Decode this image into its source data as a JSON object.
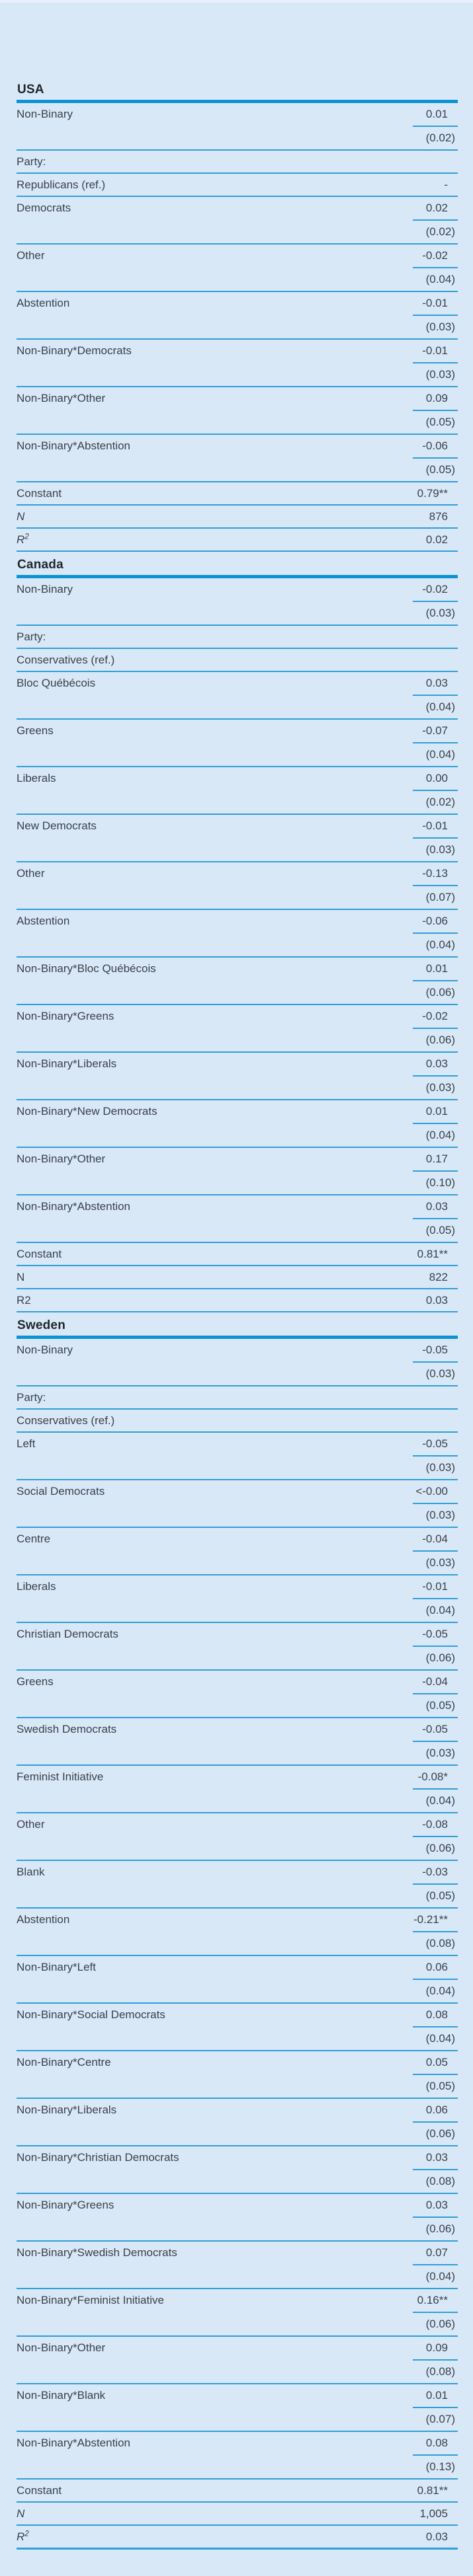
{
  "style": {
    "background": "#d9e8f7",
    "rule_thin": "#2f9ed9",
    "rule_thick": "#0d92d3",
    "text": "#3a414a",
    "header_text": "#21262d"
  },
  "table": {
    "sections": [
      {
        "country": "USA",
        "rows": [
          {
            "label": "Non-Binary",
            "value": "0.01",
            "se": "(0.02)"
          },
          {
            "label": "Party:",
            "value": ""
          },
          {
            "label": "Republicans (ref.)",
            "value": "-"
          },
          {
            "label": "Democrats",
            "value": "0.02",
            "se": "(0.02)"
          },
          {
            "label": "Other",
            "value": "-0.02",
            "se": "(0.04)"
          },
          {
            "label": "Abstention",
            "value": "-0.01",
            "se": "(0.03)"
          },
          {
            "label": "Non-Binary*Democrats",
            "value": "-0.01",
            "se": "(0.03)"
          },
          {
            "label": "Non-Binary*Other",
            "value": "0.09",
            "se": "(0.05)"
          },
          {
            "label": "Non-Binary*Abstention",
            "value": "-0.06",
            "se": "(0.05)"
          },
          {
            "label": "Constant",
            "value": "0.79**"
          },
          {
            "label": "N",
            "italic": true,
            "value": "876"
          },
          {
            "label": "R",
            "sup": "2",
            "italic": true,
            "value": "0.02"
          }
        ]
      },
      {
        "country": "Canada",
        "rows": [
          {
            "label": "Non-Binary",
            "value": "-0.02",
            "se": "(0.03)"
          },
          {
            "label": "Party:",
            "value": ""
          },
          {
            "label": "Conservatives (ref.)",
            "value": ""
          },
          {
            "label": "Bloc Québécois",
            "value": "0.03",
            "se": "(0.04)"
          },
          {
            "label": "Greens",
            "value": "-0.07",
            "se": "(0.04)"
          },
          {
            "label": "Liberals",
            "value": "0.00",
            "se": "(0.02)"
          },
          {
            "label": "New Democrats",
            "value": "-0.01",
            "se": "(0.03)"
          },
          {
            "label": "Other",
            "value": "-0.13",
            "se": "(0.07)"
          },
          {
            "label": "Abstention",
            "value": "-0.06",
            "se": "(0.04)"
          },
          {
            "label": "Non-Binary*Bloc Québécois",
            "value": "0.01",
            "se": "(0.06)"
          },
          {
            "label": "Non-Binary*Greens",
            "value": "-0.02",
            "se": "(0.06)"
          },
          {
            "label": "Non-Binary*Liberals",
            "value": "0.03",
            "se": "(0.03)"
          },
          {
            "label": "Non-Binary*New Democrats",
            "value": "0.01",
            "se": "(0.04)"
          },
          {
            "label": "Non-Binary*Other",
            "value": "0.17",
            "se": "(0.10)"
          },
          {
            "label": "Non-Binary*Abstention",
            "value": "0.03",
            "se": "(0.05)"
          },
          {
            "label": "Constant",
            "value": "0.81**"
          },
          {
            "label": "N",
            "value": "822"
          },
          {
            "label": "R2",
            "value": "0.03"
          }
        ]
      },
      {
        "country": "Sweden",
        "rows": [
          {
            "label": "Non-Binary",
            "value": "-0.05",
            "se": "(0.03)"
          },
          {
            "label": "Party:",
            "value": ""
          },
          {
            "label": "Conservatives (ref.)",
            "value": ""
          },
          {
            "label": "Left",
            "value": "-0.05",
            "se": "(0.03)"
          },
          {
            "label": "Social Democrats",
            "value": "<-0.00",
            "se": "(0.03)"
          },
          {
            "label": "Centre",
            "value": "-0.04",
            "se": "(0.03)"
          },
          {
            "label": "Liberals",
            "value": "-0.01",
            "se": "(0.04)"
          },
          {
            "label": "Christian Democrats",
            "value": "-0.05",
            "se": "(0.06)"
          },
          {
            "label": "Greens",
            "value": "-0.04",
            "se": "(0.05)"
          },
          {
            "label": "Swedish Democrats",
            "value": "-0.05",
            "se": "(0.03)"
          },
          {
            "label": "Feminist Initiative",
            "value": "-0.08*",
            "se": "(0.04)"
          },
          {
            "label": "Other",
            "value": "-0.08",
            "se": "(0.06)"
          },
          {
            "label": "Blank",
            "value": "-0.03",
            "se": "(0.05)"
          },
          {
            "label": "Abstention",
            "value": "-0.21**",
            "se": "(0.08)"
          },
          {
            "label": "Non-Binary*Left",
            "value": "0.06",
            "se": "(0.04)"
          },
          {
            "label": "Non-Binary*Social Democrats",
            "value": "0.08",
            "se": "(0.04)"
          },
          {
            "label": "Non-Binary*Centre",
            "value": "0.05",
            "se": "(0.05)"
          },
          {
            "label": "Non-Binary*Liberals",
            "value": "0.06",
            "se": "(0.06)"
          },
          {
            "label": "Non-Binary*Christian Democrats",
            "value": "0.03",
            "se": "(0.08)"
          },
          {
            "label": "Non-Binary*Greens",
            "value": "0.03",
            "se": "(0.06)"
          },
          {
            "label": "Non-Binary*Swedish Democrats",
            "value": "0.07",
            "se": "(0.04)"
          },
          {
            "label": "Non-Binary*Feminist Initiative",
            "value": "0.16**",
            "se": "(0.06)"
          },
          {
            "label": "Non-Binary*Other",
            "value": "0.09",
            "se": "(0.08)"
          },
          {
            "label": "Non-Binary*Blank",
            "value": "0.01",
            "se": "(0.07)"
          },
          {
            "label": "Non-Binary*Abstention",
            "value": "0.08",
            "se": "(0.13)"
          },
          {
            "label": "Constant",
            "value": "0.81**"
          },
          {
            "label": "N",
            "italic": true,
            "value": "1,005"
          },
          {
            "label": "R",
            "sup": "2",
            "italic": true,
            "value": "0.03"
          }
        ]
      }
    ]
  }
}
